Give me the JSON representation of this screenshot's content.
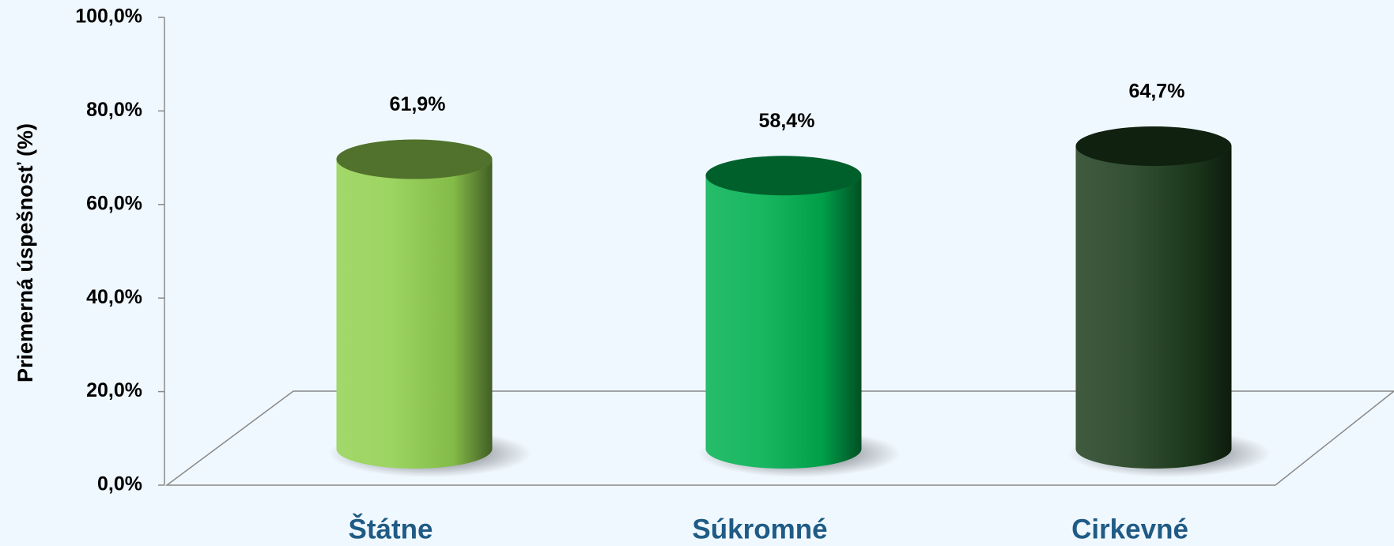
{
  "chart_data": {
    "type": "bar3d",
    "y_label": "Priemerná úspešnosť (%)",
    "categories": [
      "Štátne",
      "Súkromné",
      "Cirkevné"
    ],
    "series": [
      {
        "name": null,
        "colors": [
          "#92d050",
          "#00b050",
          "#1e3d1e"
        ],
        "values": [
          61.9,
          58.4,
          64.7
        ],
        "value_labels": [
          "61,9%",
          "58,4%",
          "64,7%"
        ]
      }
    ],
    "ylim": [
      0,
      100
    ],
    "yticks": [
      {
        "value": 0,
        "label": "0,0%"
      },
      {
        "value": 20,
        "label": "20,0%"
      },
      {
        "value": 40,
        "label": "40,0%"
      },
      {
        "value": 60,
        "label": "60,0%"
      },
      {
        "value": 80,
        "label": "80,0%"
      },
      {
        "value": 100,
        "label": "100,0%"
      }
    ]
  }
}
